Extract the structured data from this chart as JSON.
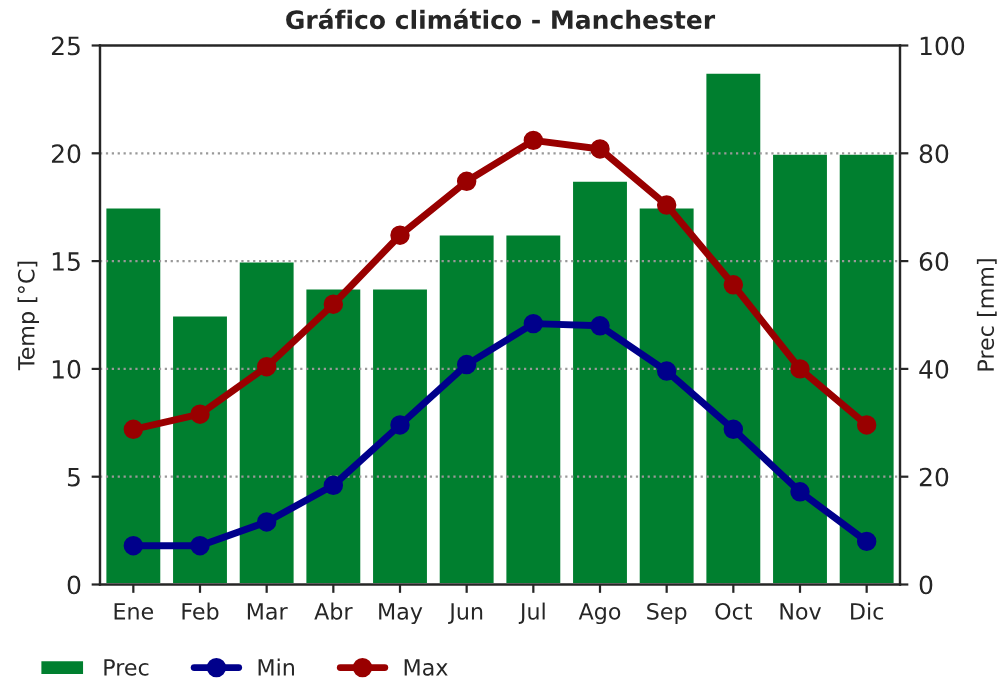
{
  "chart_data": {
    "type": "bar",
    "title": "Gráfico climático - Manchester",
    "ylabel": "Temp [°C]",
    "y2label": "Prec [mm]",
    "categories": [
      "Ene",
      "Feb",
      "Mar",
      "Abr",
      "May",
      "Jun",
      "Jul",
      "Ago",
      "Sep",
      "Oct",
      "Nov",
      "Dic"
    ],
    "series": [
      {
        "name": "Prec",
        "axis": "y2",
        "color": "#007f2f",
        "values": [
          70,
          50,
          60,
          55,
          55,
          65,
          65,
          75,
          70,
          95,
          80,
          80
        ]
      },
      {
        "name": "Min",
        "type": "line",
        "axis": "y",
        "color": "#00008b",
        "values": [
          1.8,
          1.8,
          2.9,
          4.6,
          7.4,
          10.2,
          12.1,
          12.0,
          9.9,
          7.2,
          4.3,
          2.0
        ]
      },
      {
        "name": "Max",
        "type": "line",
        "axis": "y",
        "color": "#990000",
        "values": [
          7.2,
          7.9,
          10.1,
          13.0,
          16.2,
          18.7,
          20.6,
          20.2,
          17.6,
          13.9,
          10.0,
          7.4
        ]
      }
    ],
    "ylim": [
      0,
      25
    ],
    "yticks": [
      0,
      5,
      10,
      15,
      20,
      25
    ],
    "y2lim": [
      0,
      100
    ],
    "y2ticks": [
      0,
      20,
      40,
      60,
      80,
      100
    ],
    "grid": "y",
    "legend": "bottom",
    "marker": "circle",
    "line_style": "solid"
  }
}
